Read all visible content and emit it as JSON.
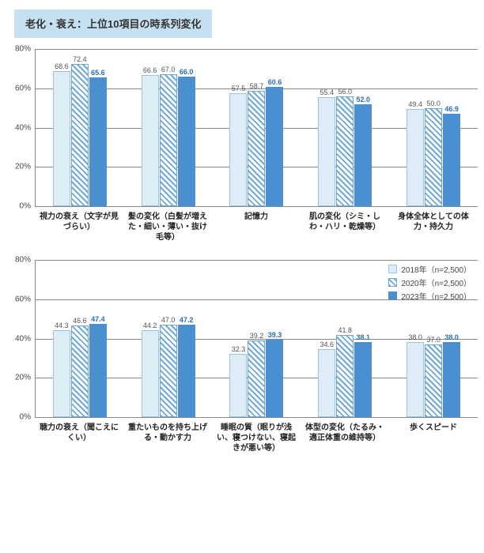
{
  "title": "老化・衰え：上位10項目の時系列変化",
  "series": [
    {
      "name": "2018年（n=2,500）",
      "class": "s0",
      "color": "#dcedf7"
    },
    {
      "name": "2020年（n=2,500）",
      "class": "s1",
      "color": "#6fa8d8"
    },
    {
      "name": "2023年（n=2,500）",
      "class": "s2",
      "color": "#4a8fcf"
    }
  ],
  "yaxis": {
    "max": 80,
    "ticks": [
      0,
      20,
      40,
      60,
      80
    ],
    "suffix": "%"
  },
  "charts": [
    {
      "showLegend": false,
      "categories": [
        {
          "label": "視力の衰え（文字が見づらい）",
          "values": [
            68.6,
            72.4,
            65.6
          ]
        },
        {
          "label": "髪の変化（白髪が増えた・細い・薄い・抜け毛等）",
          "values": [
            66.6,
            67.0,
            66.0
          ]
        },
        {
          "label": "記憶力",
          "values": [
            57.5,
            58.7,
            60.6
          ]
        },
        {
          "label": "肌の変化（シミ・しわ・ハリ・乾燥等）",
          "values": [
            55.4,
            56.0,
            52.0
          ]
        },
        {
          "label": "身体全体としての体力・持久力",
          "values": [
            49.4,
            50.0,
            46.9
          ]
        }
      ]
    },
    {
      "showLegend": true,
      "categories": [
        {
          "label": "聴力の衰え（聞こえにくい）",
          "values": [
            44.3,
            46.6,
            47.4
          ]
        },
        {
          "label": "重たいものを持ち上げる・動かす力",
          "values": [
            44.2,
            47.0,
            47.2
          ]
        },
        {
          "label": "睡眠の質（眠りが浅い、寝つけない、寝起きが悪い等）",
          "values": [
            32.3,
            39.2,
            39.3
          ]
        },
        {
          "label": "体型の変化（たるみ・適正体重の維持等）",
          "values": [
            34.6,
            41.8,
            38.1
          ]
        },
        {
          "label": "歩くスピード",
          "values": [
            38.0,
            37.0,
            38.0
          ]
        }
      ]
    }
  ]
}
